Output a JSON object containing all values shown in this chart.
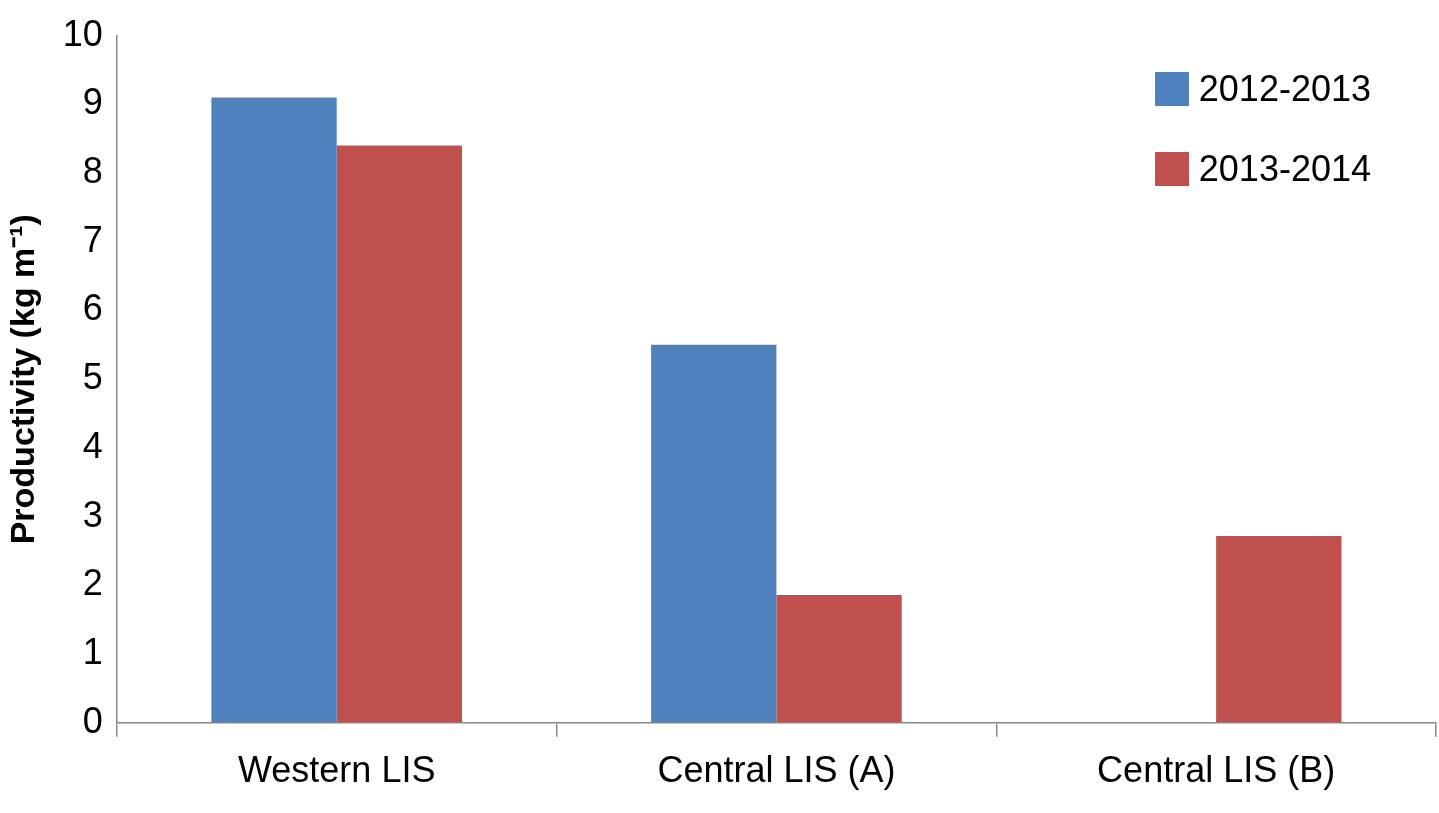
{
  "chart_data": {
    "type": "bar",
    "ylabel": "Productivity (kg m⁻¹)",
    "categories": [
      "Western LIS",
      "Central LIS (A)",
      "Central LIS (B)"
    ],
    "series": [
      {
        "name": "2012-2013",
        "color": "#4f81bd",
        "values": [
          9.1,
          5.5,
          null
        ]
      },
      {
        "name": "2013-2014",
        "color": "#c0504d",
        "values": [
          8.4,
          1.86,
          2.72
        ]
      }
    ],
    "ylim": [
      0,
      10
    ],
    "yticks": [
      0,
      1,
      2,
      3,
      4,
      5,
      6,
      7,
      8,
      9,
      10
    ],
    "grid": false,
    "legend": "top right"
  }
}
